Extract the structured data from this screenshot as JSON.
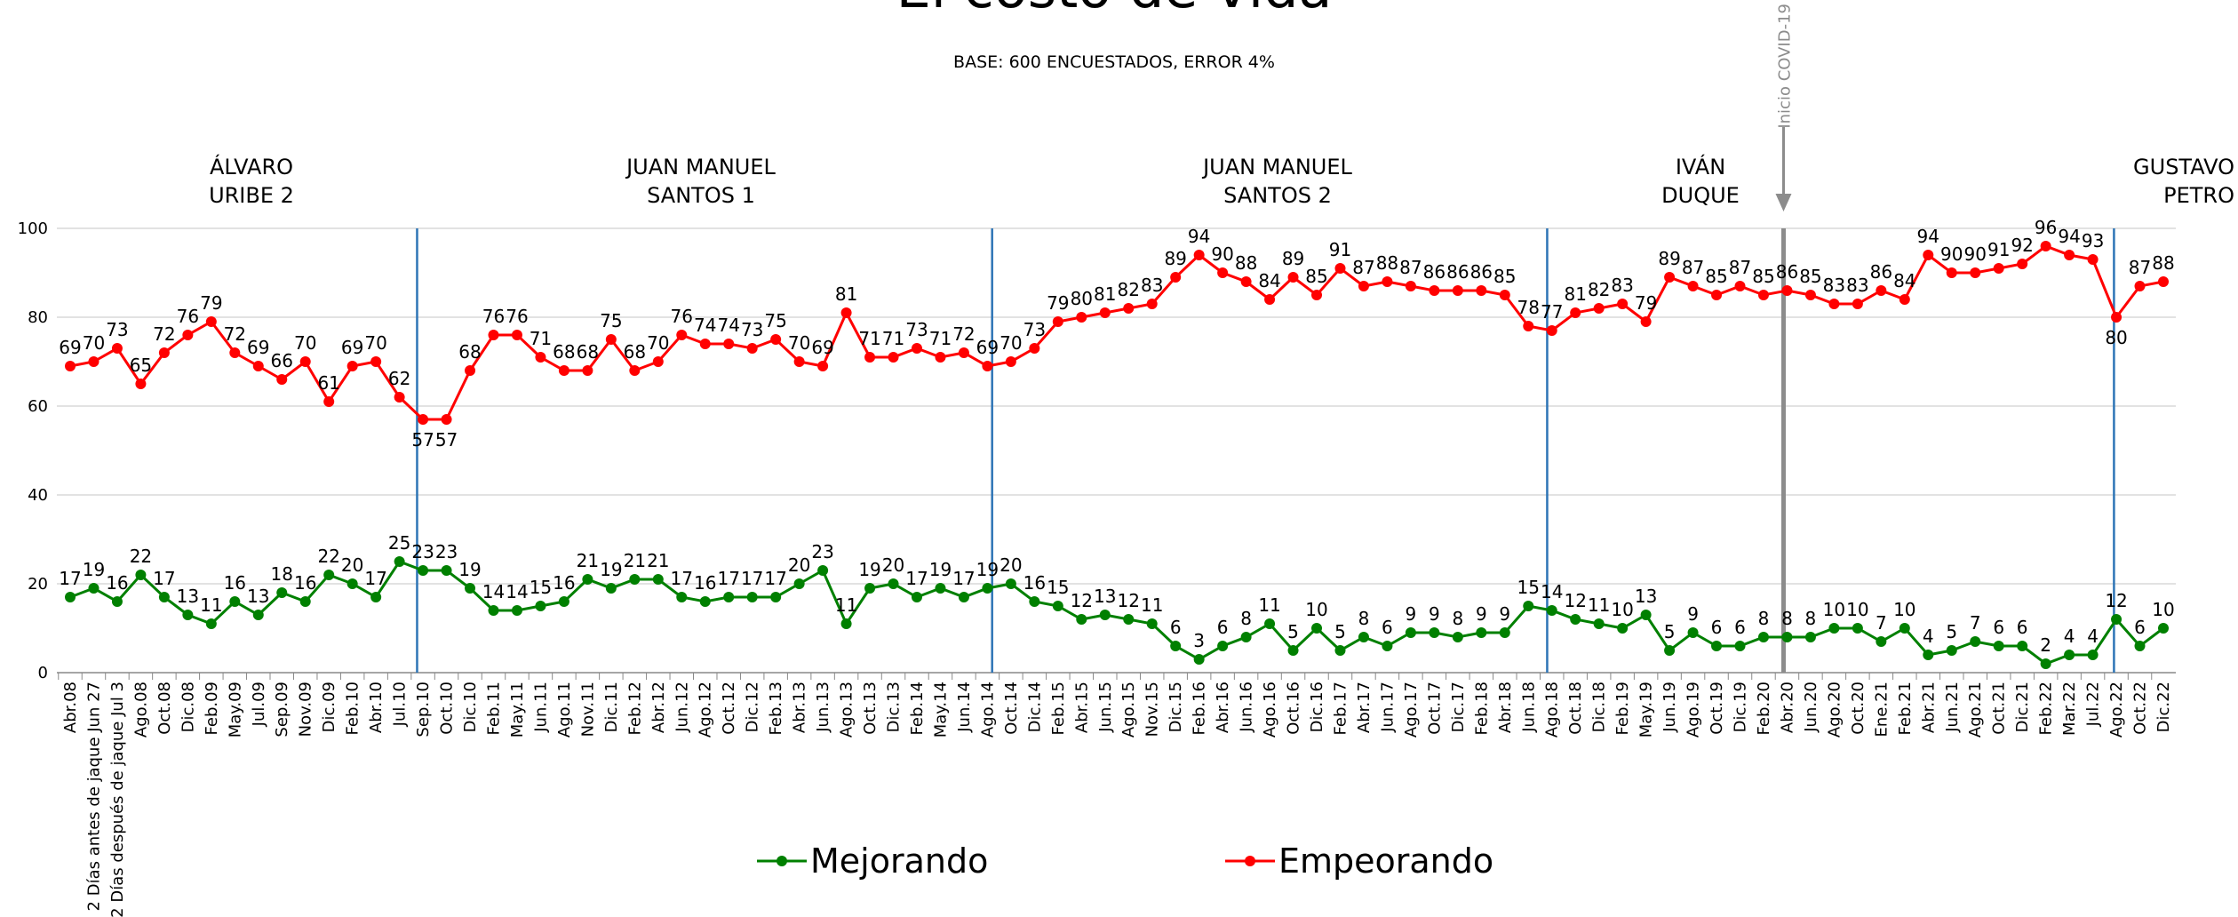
{
  "chart_data": {
    "type": "line",
    "title": "El costo de vida",
    "subtitle": "BASE: 600 ENCUESTADOS, ERROR 4%",
    "periods": [
      [
        "ÁLVARO",
        "URIBE 2"
      ],
      [
        "JUAN MANUEL",
        "SANTOS 1"
      ],
      [
        "JUAN MANUEL",
        "SANTOS 2"
      ],
      [
        "IVÁN",
        "DUQUE"
      ],
      [
        "GUSTAVO",
        "PETRO"
      ]
    ],
    "annotation": "Inicio COVID-19",
    "categories": [
      "Abr.08",
      "2 Días antes de jaque Jun 27",
      "2 Días después de jaque Jul 3",
      "Ago.08",
      "Oct.08",
      "Dic.08",
      "Feb.09",
      "May.09",
      "Jul.09",
      "Sep.09",
      "Nov.09",
      "Dic.09",
      "Feb.10",
      "Abr.10",
      "Jul.10",
      "Sep.10",
      "Oct.10",
      "Dic.10",
      "Feb.11",
      "May.11",
      "Jun.11",
      "Ago.11",
      "Nov.11",
      "Dic.11",
      "Feb.12",
      "Abr.12",
      "Jun.12",
      "Ago.12",
      "Oct.12",
      "Dic.12",
      "Feb.13",
      "Abr.13",
      "Jun.13",
      "Ago.13",
      "Oct.13",
      "Dic.13",
      "Feb.14",
      "May.14",
      "Jun.14",
      "Ago.14",
      "Oct.14",
      "Dic.14",
      "Feb.15",
      "Abr.15",
      "Jun.15",
      "Ago.15",
      "Nov.15",
      "Dic.15",
      "Feb.16",
      "Abr.16",
      "Jun.16",
      "Ago.16",
      "Oct.16",
      "Dic.16",
      "Feb.17",
      "Abr.17",
      "Jun.17",
      "Ago.17",
      "Oct.17",
      "Dic.17",
      "Feb.18",
      "Abr.18",
      "Jun.18",
      "Ago.18",
      "Oct.18",
      "Dic.18",
      "Feb.19",
      "May.19",
      "Jun.19",
      "Ago.19",
      "Oct.19",
      "Dic.19",
      "Feb.20",
      "Abr.20",
      "Jun.20",
      "Ago.20",
      "Oct.20",
      "Ene.21",
      "Feb.21",
      "Abr.21",
      "Jun.21",
      "Ago.21",
      "Oct.21",
      "Dic.21",
      "Feb.22",
      "Mar.22",
      "Jul.22",
      "Ago.22",
      "Oct.22",
      "Dic.22"
    ],
    "series": [
      {
        "name": "Mejorando",
        "color": "#008000",
        "values": [
          17,
          19,
          16,
          22,
          17,
          13,
          11,
          16,
          13,
          18,
          16,
          22,
          20,
          17,
          25,
          23,
          23,
          19,
          14,
          14,
          15,
          16,
          21,
          19,
          21,
          21,
          17,
          16,
          17,
          17,
          17,
          20,
          23,
          11,
          19,
          20,
          17,
          19,
          17,
          19,
          20,
          16,
          15,
          12,
          13,
          12,
          11,
          6,
          3,
          6,
          8,
          11,
          5,
          10,
          5,
          8,
          6,
          9,
          9,
          8,
          9,
          9,
          15,
          14,
          12,
          11,
          10,
          13,
          5,
          9,
          6,
          6,
          8,
          8,
          8,
          10,
          10,
          7,
          10,
          4,
          5,
          7,
          6,
          6,
          2,
          4,
          4,
          12,
          6,
          10
        ]
      },
      {
        "name": "Empeorando",
        "color": "#ff0000",
        "values": [
          69,
          70,
          73,
          65,
          72,
          76,
          79,
          72,
          69,
          66,
          70,
          61,
          69,
          70,
          62,
          57,
          57,
          68,
          76,
          76,
          71,
          68,
          68,
          75,
          68,
          70,
          76,
          74,
          74,
          73,
          75,
          70,
          69,
          81,
          71,
          71,
          73,
          71,
          72,
          69,
          70,
          73,
          79,
          80,
          81,
          82,
          83,
          89,
          94,
          90,
          88,
          84,
          89,
          85,
          91,
          87,
          88,
          87,
          86,
          86,
          86,
          85,
          78,
          77,
          81,
          82,
          83,
          79,
          89,
          87,
          85,
          87,
          85,
          86,
          85,
          83,
          83,
          86,
          84,
          94,
          90,
          90,
          91,
          92,
          96,
          94,
          93,
          80,
          87,
          88
        ]
      }
    ],
    "ylim": [
      0,
      100
    ],
    "yticks": [
      0,
      20,
      40,
      60,
      80,
      100
    ],
    "grid": true,
    "legend": "bottom"
  }
}
